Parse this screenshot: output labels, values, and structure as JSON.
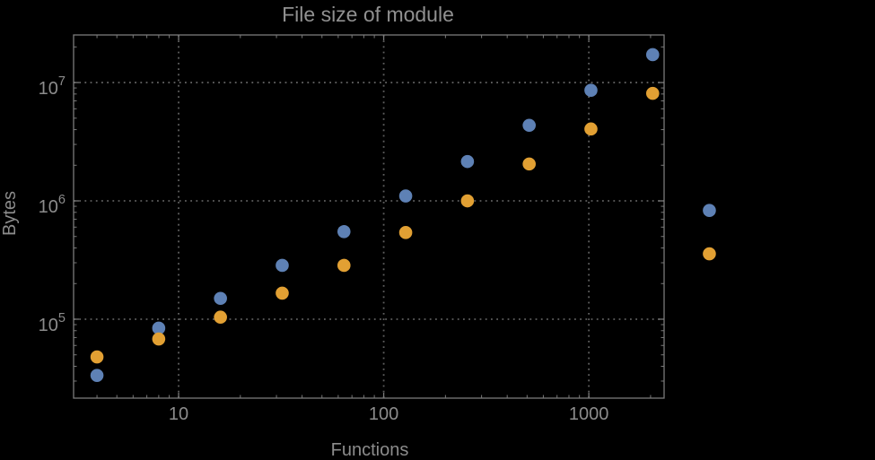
{
  "chart_data": {
    "type": "scatter",
    "title": "File size of module",
    "xlabel": "Functions",
    "ylabel": "Bytes",
    "x_scale": "log",
    "y_scale": "log",
    "grid": "dotted lines at major decades, no legend",
    "axes": {
      "xlim_log10": [
        0.488,
        3.367
      ],
      "ylim_log10": [
        4.333,
        7.402
      ],
      "x_ticks": [
        {
          "value": 10,
          "label": "10"
        },
        {
          "value": 100,
          "label": "100"
        },
        {
          "value": 1000,
          "label": "1000"
        }
      ],
      "y_ticks": [
        {
          "value": 100000,
          "mantissa": "10",
          "exponent": "5"
        },
        {
          "value": 1000000,
          "mantissa": "10",
          "exponent": "6"
        },
        {
          "value": 10000000,
          "mantissa": "10",
          "exponent": "7"
        }
      ]
    },
    "series": [
      {
        "name": "series-1-blue",
        "color": "#5E81B5",
        "points": [
          [
            4,
            33500
          ],
          [
            8,
            84000
          ],
          [
            16,
            150000
          ],
          [
            32,
            285000
          ],
          [
            64,
            550000
          ],
          [
            128,
            1100000
          ],
          [
            256,
            2150000
          ],
          [
            512,
            4350000
          ],
          [
            1024,
            8600000
          ],
          [
            2048,
            17200000
          ],
          [
            3870,
            830000
          ]
        ]
      },
      {
        "name": "series-2-orange",
        "color": "#E2A033",
        "points": [
          [
            4,
            48000
          ],
          [
            8,
            68000
          ],
          [
            16,
            104000
          ],
          [
            32,
            166000
          ],
          [
            64,
            285000
          ],
          [
            128,
            540000
          ],
          [
            256,
            1000000
          ],
          [
            512,
            2050000
          ],
          [
            1024,
            4050000
          ],
          [
            2048,
            8100000
          ],
          [
            3870,
            357000
          ]
        ]
      }
    ],
    "style": {
      "background": "#000000",
      "frame_color": "#7A7A7A",
      "grid_color": "#5F5F5F",
      "tick_label_color": "#8C8C8C",
      "title_color": "#909090",
      "point_radius": 7.3
    }
  }
}
